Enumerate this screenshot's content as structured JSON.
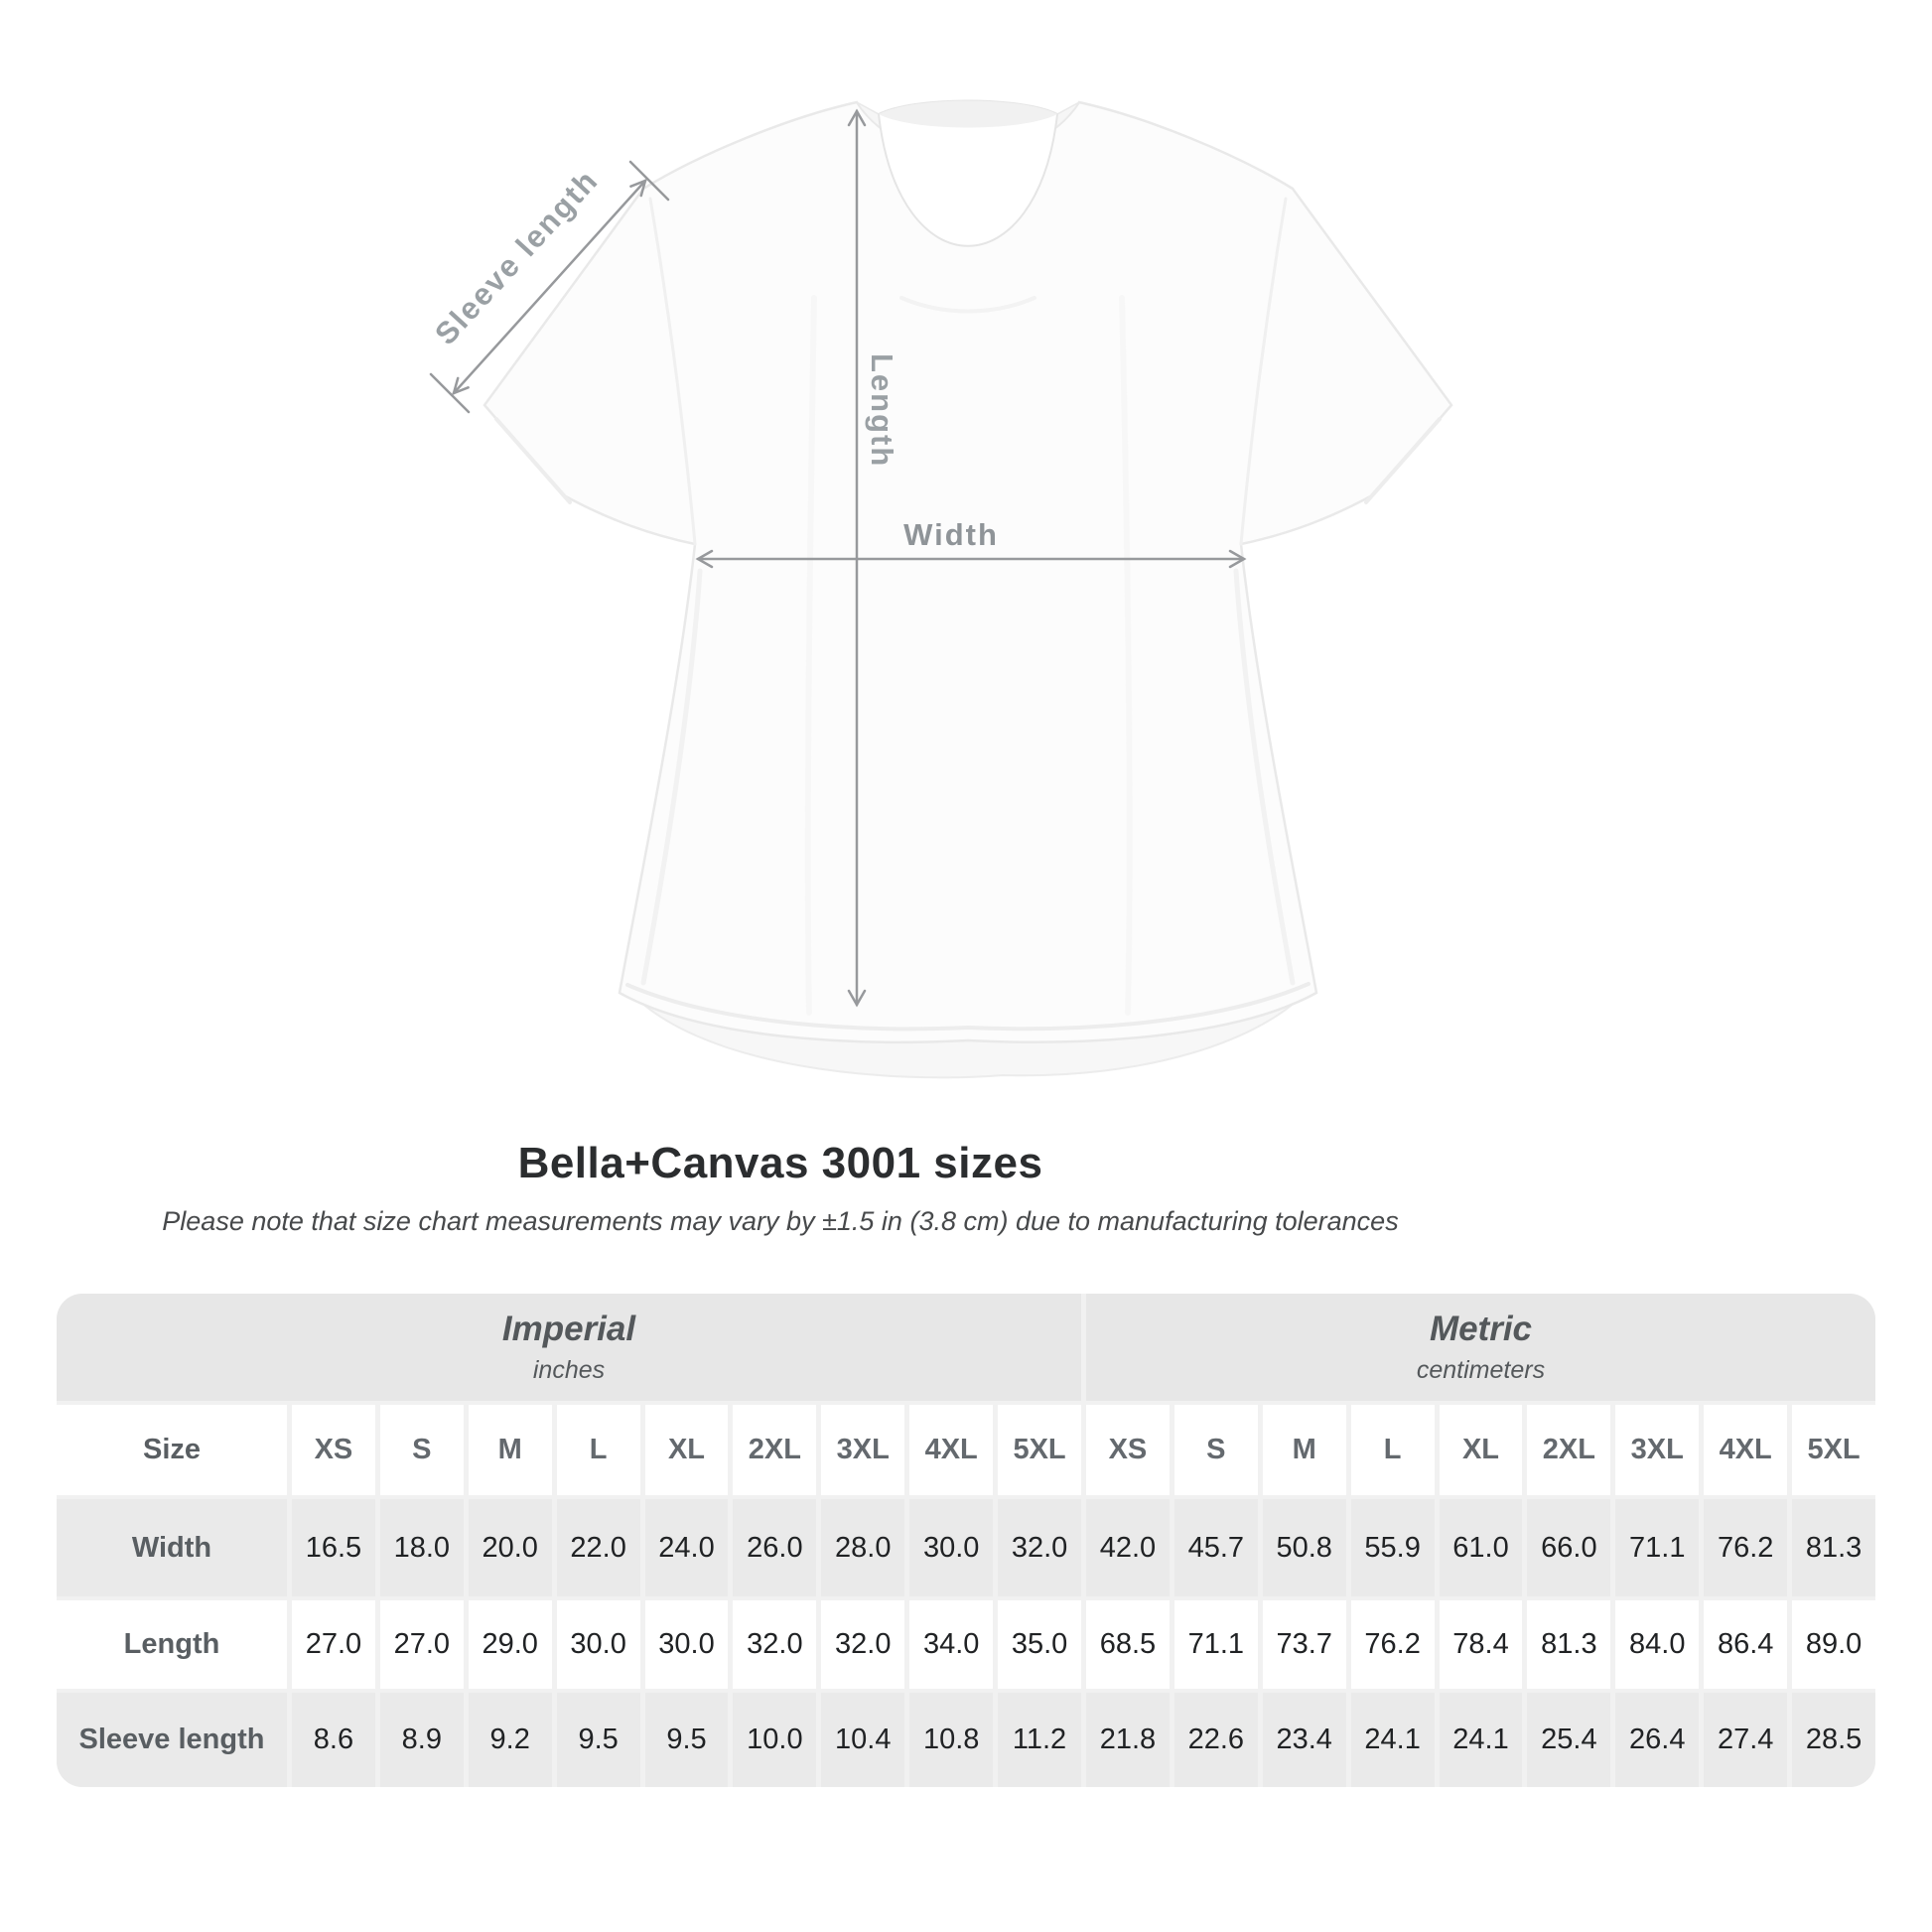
{
  "diagram": {
    "sleeve_label": "Sleeve length",
    "length_label": "Length",
    "width_label": "Width",
    "arrow_color": "#97999c",
    "label_color": "#9aa0a4"
  },
  "heading": {
    "title": "Bella+Canvas 3001 sizes",
    "subtitle": "Please note that size chart measurements may vary by ±1.5 in (3.8 cm) due to manufacturing tolerances"
  },
  "table": {
    "size_header": "Size",
    "sizes": [
      "XS",
      "S",
      "M",
      "L",
      "XL",
      "2XL",
      "3XL",
      "4XL",
      "5XL"
    ],
    "sections": [
      {
        "label": "Imperial",
        "unit": "inches"
      },
      {
        "label": "Metric",
        "unit": "centimeters"
      }
    ],
    "rows": [
      {
        "label": "Width",
        "imperial": [
          "16.5",
          "18.0",
          "20.0",
          "22.0",
          "24.0",
          "26.0",
          "28.0",
          "30.0",
          "32.0"
        ],
        "metric": [
          "42.0",
          "45.7",
          "50.8",
          "55.9",
          "61.0",
          "66.0",
          "71.1",
          "76.2",
          "81.3"
        ]
      },
      {
        "label": "Length",
        "imperial": [
          "27.0",
          "27.0",
          "29.0",
          "30.0",
          "30.0",
          "32.0",
          "32.0",
          "34.0",
          "35.0"
        ],
        "metric": [
          "68.5",
          "71.1",
          "73.7",
          "76.2",
          "78.4",
          "81.3",
          "84.0",
          "86.4",
          "89.0"
        ]
      },
      {
        "label": "Sleeve length",
        "imperial": [
          "8.6",
          "8.9",
          "9.2",
          "9.5",
          "9.5",
          "10.0",
          "10.4",
          "10.8",
          "11.2"
        ],
        "metric": [
          "21.8",
          "22.6",
          "23.4",
          "24.1",
          "24.1",
          "25.4",
          "26.4",
          "27.4",
          "28.5"
        ]
      }
    ],
    "colors": {
      "band": "#e7e7e7",
      "alt_row": "#eaeaea",
      "gap": "#f1f1f1",
      "label_text": "#595e62",
      "value_text": "#202224"
    }
  },
  "chart_data": {
    "type": "table",
    "title": "Bella+Canvas 3001 sizes",
    "note": "Please note that size chart measurements may vary by ±1.5 in (3.8 cm) due to manufacturing tolerances",
    "units": {
      "imperial": "inches",
      "metric": "centimeters"
    },
    "sizes": [
      "XS",
      "S",
      "M",
      "L",
      "XL",
      "2XL",
      "3XL",
      "4XL",
      "5XL"
    ],
    "measurements": [
      {
        "name": "Width",
        "imperial_in": [
          16.5,
          18.0,
          20.0,
          22.0,
          24.0,
          26.0,
          28.0,
          30.0,
          32.0
        ],
        "metric_cm": [
          42.0,
          45.7,
          50.8,
          55.9,
          61.0,
          66.0,
          71.1,
          76.2,
          81.3
        ]
      },
      {
        "name": "Length",
        "imperial_in": [
          27.0,
          27.0,
          29.0,
          30.0,
          30.0,
          32.0,
          32.0,
          34.0,
          35.0
        ],
        "metric_cm": [
          68.5,
          71.1,
          73.7,
          76.2,
          78.4,
          81.3,
          84.0,
          86.4,
          89.0
        ]
      },
      {
        "name": "Sleeve length",
        "imperial_in": [
          8.6,
          8.9,
          9.2,
          9.5,
          9.5,
          10.0,
          10.4,
          10.8,
          11.2
        ],
        "metric_cm": [
          21.8,
          22.6,
          23.4,
          24.1,
          24.1,
          25.4,
          26.4,
          27.4,
          28.5
        ]
      }
    ]
  }
}
